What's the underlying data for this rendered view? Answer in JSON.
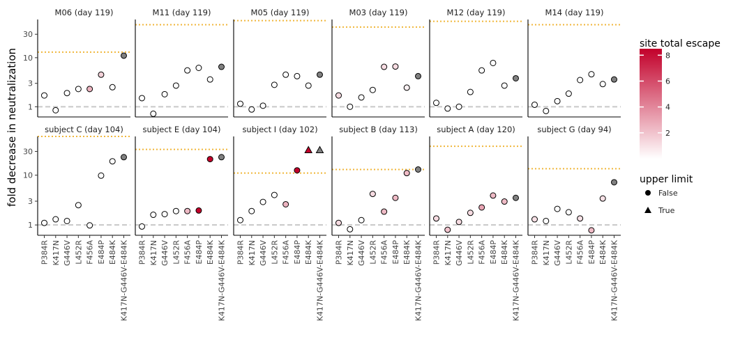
{
  "chart_data": {
    "type": "scatter",
    "ylabel": "fold decrease in neutralization",
    "xlabel": "",
    "yscale": "log",
    "ylim": [
      0.62,
      60
    ],
    "yticks": [
      1,
      3,
      10,
      30
    ],
    "ytick_labels": [
      "1",
      "3",
      "10",
      "30"
    ],
    "reference_line_y": 1,
    "categories": [
      "P384R",
      "K417N",
      "G446V",
      "L452R",
      "F456A",
      "E484P",
      "E484K",
      "K417N-G446V-E484K"
    ],
    "color_scale": {
      "title": "site total escape",
      "range": [
        0,
        8.5
      ],
      "ticks": [
        2,
        4,
        6,
        8
      ],
      "low_color": "#ffffff",
      "high_color": "#c2002a",
      "gray_color": "#808080"
    },
    "shape_legend": {
      "title": "upper limit",
      "entries": [
        {
          "label": "False",
          "shape": "circle"
        },
        {
          "label": "True",
          "shape": "triangle"
        }
      ]
    },
    "panels": [
      {
        "title": "M06 (day 119)",
        "limit": 13,
        "values": [
          1.7,
          0.85,
          1.9,
          2.3,
          2.3,
          4.5,
          2.5,
          11
        ],
        "escape": [
          0,
          0,
          0,
          0,
          2.5,
          1.5,
          0,
          null
        ],
        "upper_limit": [
          false,
          false,
          false,
          false,
          false,
          false,
          false,
          false
        ]
      },
      {
        "title": "M11 (day 119)",
        "limit": 47,
        "values": [
          1.5,
          0.72,
          1.8,
          2.7,
          5.5,
          6.2,
          3.6,
          6.5
        ],
        "escape": [
          0,
          0,
          0,
          0,
          0,
          0,
          0,
          null
        ],
        "upper_limit": [
          false,
          false,
          false,
          false,
          false,
          false,
          false,
          false
        ]
      },
      {
        "title": "M05 (day 119)",
        "limit": 57,
        "values": [
          1.15,
          0.88,
          1.05,
          2.8,
          4.5,
          4.2,
          2.7,
          4.5
        ],
        "escape": [
          0,
          0,
          0,
          0,
          0,
          0,
          0,
          null
        ],
        "upper_limit": [
          false,
          false,
          false,
          false,
          false,
          false,
          false,
          false
        ]
      },
      {
        "title": "M03 (day 119)",
        "limit": 42,
        "values": [
          1.7,
          1.0,
          1.55,
          2.2,
          6.5,
          6.6,
          2.45,
          4.2
        ],
        "escape": [
          1.2,
          0,
          0,
          0,
          1.2,
          1.2,
          0.5,
          null
        ],
        "upper_limit": [
          false,
          false,
          false,
          false,
          false,
          false,
          false,
          false
        ]
      },
      {
        "title": "M12 (day 119)",
        "limit": 55,
        "values": [
          1.2,
          0.92,
          1.0,
          2.0,
          5.5,
          7.8,
          2.7,
          3.8
        ],
        "escape": [
          0,
          0,
          0,
          0,
          0,
          0,
          0,
          null
        ],
        "upper_limit": [
          false,
          false,
          false,
          false,
          false,
          false,
          false,
          false
        ]
      },
      {
        "title": "M14 (day 119)",
        "limit": 47,
        "values": [
          1.1,
          0.82,
          1.3,
          1.85,
          3.5,
          4.6,
          2.9,
          3.6
        ],
        "escape": [
          0,
          0,
          0,
          0,
          0,
          0,
          0,
          null
        ],
        "upper_limit": [
          false,
          false,
          false,
          false,
          false,
          false,
          false,
          false
        ]
      },
      {
        "title": "subject C (day 104)",
        "limit": 60,
        "values": [
          1.1,
          1.3,
          1.2,
          2.5,
          0.98,
          9.8,
          19,
          23
        ],
        "escape": [
          0,
          0,
          0,
          0,
          0,
          0,
          0,
          null
        ],
        "upper_limit": [
          false,
          false,
          false,
          false,
          false,
          false,
          false,
          false
        ]
      },
      {
        "title": "subject E (day 104)",
        "limit": 33,
        "values": [
          0.93,
          1.6,
          1.65,
          1.9,
          1.9,
          1.95,
          21,
          23
        ],
        "escape": [
          0,
          0,
          0,
          0,
          2.3,
          8.5,
          8.5,
          null
        ],
        "upper_limit": [
          false,
          false,
          false,
          false,
          false,
          false,
          false,
          false
        ]
      },
      {
        "title": "subject I (day 102)",
        "limit": 11,
        "values": [
          1.25,
          1.9,
          2.9,
          4.0,
          2.6,
          12.5,
          32,
          32
        ],
        "escape": [
          0,
          0,
          0,
          0,
          2.5,
          8.5,
          8.5,
          null
        ],
        "upper_limit": [
          false,
          false,
          false,
          false,
          false,
          false,
          true,
          true
        ]
      },
      {
        "title": "subject B (day 113)",
        "limit": 13,
        "values": [
          1.1,
          0.82,
          1.25,
          4.2,
          1.85,
          3.5,
          11,
          13
        ],
        "escape": [
          1.2,
          0,
          0,
          1.2,
          2.3,
          2.3,
          2.3,
          null
        ],
        "upper_limit": [
          false,
          false,
          false,
          false,
          false,
          false,
          false,
          false
        ]
      },
      {
        "title": "subject A (day 120)",
        "limit": 38,
        "values": [
          1.35,
          0.8,
          1.15,
          1.75,
          2.25,
          3.9,
          2.95,
          3.5
        ],
        "escape": [
          1.2,
          2.0,
          1.2,
          1.2,
          3.0,
          2.3,
          2.3,
          null
        ],
        "upper_limit": [
          false,
          false,
          false,
          false,
          false,
          false,
          false,
          false
        ]
      },
      {
        "title": "subject G (day 94)",
        "limit": 13.5,
        "values": [
          1.3,
          1.2,
          2.1,
          1.8,
          1.35,
          0.78,
          3.4,
          7.2
        ],
        "escape": [
          1.0,
          0,
          0,
          0,
          1.0,
          2.3,
          1.0,
          null
        ],
        "upper_limit": [
          false,
          false,
          false,
          false,
          false,
          false,
          false,
          false
        ]
      }
    ]
  }
}
